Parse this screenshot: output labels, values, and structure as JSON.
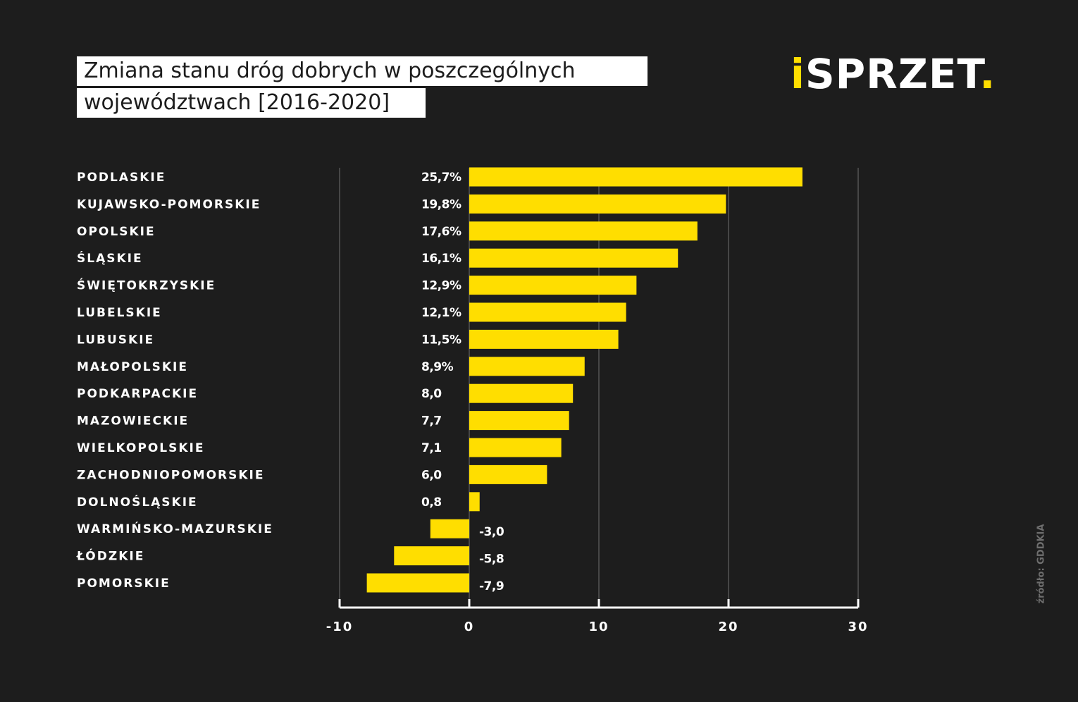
{
  "header": {
    "title_line_1": "Zmiana stanu dróg dobrych w poszczególnych",
    "title_line_2": "województwach [2016-2020]"
  },
  "logo": {
    "i": "i",
    "text": "SPRZET",
    "dot": "."
  },
  "source": "źródło: GDDKIA",
  "colors": {
    "bar": "#ffde00",
    "background": "#1d1d1d",
    "text": "#ffffff",
    "grid": "#555555"
  },
  "chart_data": {
    "type": "bar",
    "orientation": "horizontal",
    "title": "Zmiana stanu dróg dobrych w poszczególnych województwach [2016-2020]",
    "categories": [
      "PODLASKIE",
      "KUJAWSKO-POMORSKIE",
      "OPOLSKIE",
      "ŚLĄSKIE",
      "ŚWIĘTOKRZYSKIE",
      "LUBELSKIE",
      "LUBUSKIE",
      "MAŁOPOLSKIE",
      "PODKARPACKIE",
      "MAZOWIECKIE",
      "WIELKOPOLSKIE",
      "ZACHODNIOPOMORSKIE",
      "DOLNOŚLĄSKIE",
      "WARMIŃSKO-MAZURSKIE",
      "ŁÓDZKIE",
      "POMORSKIE"
    ],
    "values": [
      25.7,
      19.8,
      17.6,
      16.1,
      12.9,
      12.1,
      11.5,
      8.9,
      8.0,
      7.7,
      7.1,
      6.0,
      0.8,
      -3.0,
      -5.8,
      -7.9
    ],
    "value_labels": [
      "25,7%",
      "19,8%",
      "17,6%",
      "16,1%",
      "12,9%",
      "12,1%",
      "11,5%",
      "8,9%",
      "8,0",
      "7,7",
      "7,1",
      "6,0",
      "0,8",
      "-3,0",
      "-5,8",
      "-7,9"
    ],
    "xlim": [
      -10,
      30
    ],
    "xticks": [
      -10,
      0,
      10,
      20,
      30
    ],
    "xtick_labels": [
      "-10",
      "0",
      "10",
      "20",
      "30"
    ],
    "grid": true,
    "legend": "none"
  }
}
